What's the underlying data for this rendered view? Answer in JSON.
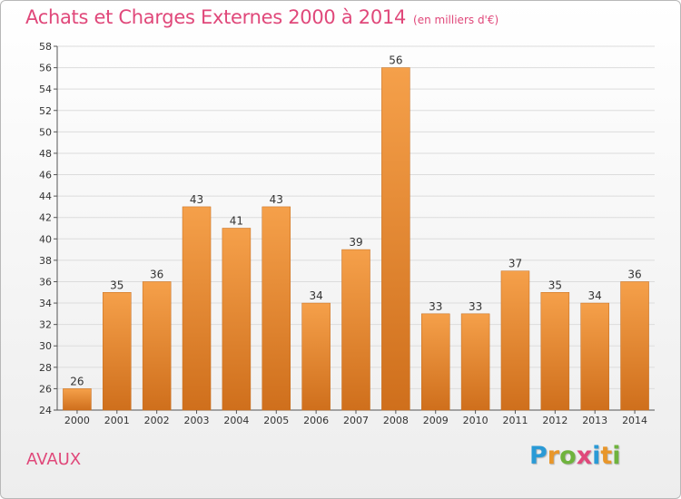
{
  "title": "Achats et Charges Externes 2000 à 2014",
  "title_unit": "(en milliers d'€)",
  "commune": "AVAUX",
  "logo": {
    "letters": [
      "P",
      "r",
      "o",
      "x",
      "i",
      "t",
      "i"
    ],
    "colors": [
      "#2a9ad6",
      "#e8962a",
      "#6fb33d",
      "#e0487a",
      "#2a9ad6",
      "#e8962a",
      "#6fb33d"
    ]
  },
  "chart_data": {
    "type": "bar",
    "categories": [
      "2000",
      "2001",
      "2002",
      "2003",
      "2004",
      "2005",
      "2006",
      "2007",
      "2008",
      "2009",
      "2010",
      "2011",
      "2012",
      "2013",
      "2014"
    ],
    "values": [
      26,
      35,
      36,
      43,
      41,
      43,
      34,
      39,
      56,
      33,
      33,
      37,
      35,
      34,
      36
    ],
    "data_labels": [
      "26",
      "35",
      "36",
      "43",
      "41",
      "43",
      "34",
      "39",
      "56",
      "33",
      "33",
      "37",
      "35",
      "34",
      "36"
    ],
    "ylim": [
      24,
      58
    ],
    "yticks": [
      24,
      26,
      28,
      30,
      32,
      34,
      36,
      38,
      40,
      42,
      44,
      46,
      48,
      50,
      52,
      54,
      56,
      58
    ],
    "grid": true,
    "bar_color": "#f0963c",
    "bar_color_dark": "#cf6f1c"
  }
}
